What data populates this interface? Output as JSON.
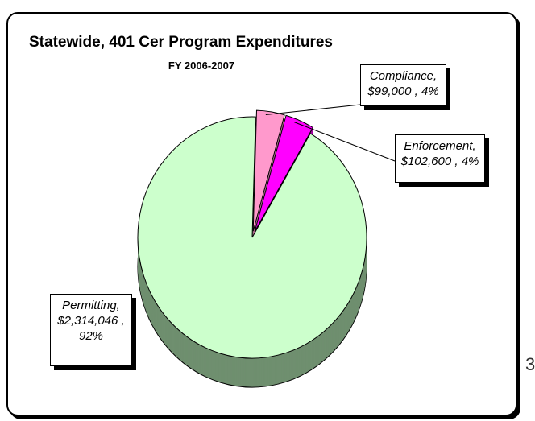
{
  "chart_data": {
    "type": "pie",
    "title": "Statewide, 401 Cer Program Expenditures",
    "subtitle": "FY 2006-2007",
    "categories": [
      "Permitting",
      "Compliance",
      "Enforcement"
    ],
    "values": [
      2314046,
      99000,
      102600
    ],
    "value_labels": [
      "Permitting, $2,314,046 , 92%",
      "Compliance, $99,000 , 4%",
      "Enforcement, $102,600 , 4%"
    ],
    "colors": [
      "#ccffcc",
      "#ff99cc",
      "#ff00ff"
    ],
    "side_colors": [
      "#6f8f6f",
      "#b36b8f",
      "#a000a0"
    ]
  },
  "page_number": "3"
}
